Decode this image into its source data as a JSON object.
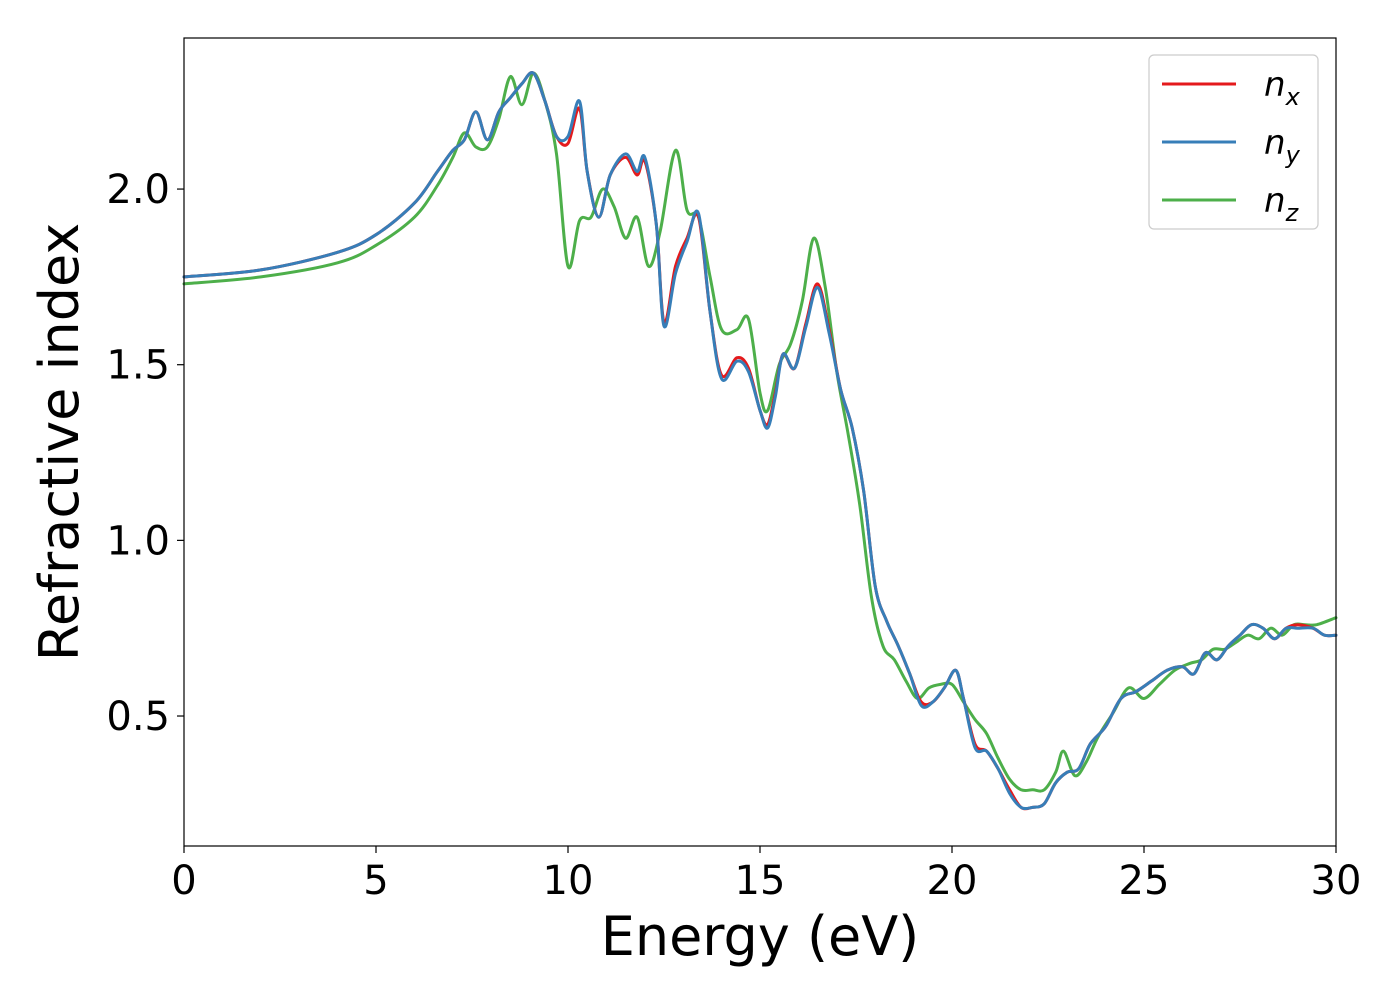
{
  "chart_data": {
    "type": "line",
    "title": "",
    "xlabel": "Energy (eV)",
    "ylabel": "Refractive index",
    "xlim": [
      0,
      30
    ],
    "ylim": [
      0.13,
      2.43
    ],
    "xticks": [
      0,
      5,
      10,
      15,
      20,
      25,
      30
    ],
    "xtick_labels": [
      "0",
      "5",
      "10",
      "15",
      "20",
      "25",
      "30"
    ],
    "yticks": [
      0.5,
      1.0,
      1.5,
      2.0
    ],
    "ytick_labels": [
      "0.5",
      "1.0",
      "1.5",
      "2.0"
    ],
    "grid": false,
    "legend": {
      "placement": "top-right",
      "entries": [
        {
          "base": "n",
          "sub": "x"
        },
        {
          "base": "n",
          "sub": "y"
        },
        {
          "base": "n",
          "sub": "z"
        }
      ]
    },
    "series": [
      {
        "name": "n_x",
        "color": "#e41a1c",
        "x": [
          0,
          2,
          4,
          5,
          6,
          6.6,
          7.0,
          7.3,
          7.6,
          7.9,
          8.2,
          8.5,
          8.8,
          9.1,
          9.4,
          9.7,
          10.0,
          10.3,
          10.5,
          10.8,
          11.1,
          11.5,
          11.8,
          12.0,
          12.3,
          12.5,
          12.8,
          13.1,
          13.4,
          13.7,
          14.0,
          14.4,
          14.7,
          15.0,
          15.2,
          15.4,
          15.6,
          15.9,
          16.2,
          16.5,
          16.8,
          17.1,
          17.4,
          17.7,
          18.0,
          18.3,
          18.6,
          18.9,
          19.2,
          19.5,
          19.8,
          20.1,
          20.3,
          20.6,
          20.9,
          21.2,
          21.5,
          21.8,
          22.1,
          22.4,
          22.7,
          23.0,
          23.3,
          23.6,
          24.0,
          24.4,
          24.8,
          25.2,
          25.6,
          26.0,
          26.3,
          26.6,
          26.9,
          27.2,
          27.5,
          27.8,
          28.1,
          28.4,
          28.7,
          29.0,
          29.4,
          29.7,
          30.0
        ],
        "y": [
          1.75,
          1.77,
          1.82,
          1.87,
          1.96,
          2.05,
          2.11,
          2.14,
          2.22,
          2.14,
          2.22,
          2.26,
          2.3,
          2.33,
          2.25,
          2.15,
          2.13,
          2.23,
          2.05,
          1.92,
          2.04,
          2.09,
          2.04,
          2.08,
          1.9,
          1.62,
          1.78,
          1.86,
          1.92,
          1.65,
          1.47,
          1.52,
          1.49,
          1.37,
          1.33,
          1.42,
          1.53,
          1.49,
          1.62,
          1.73,
          1.6,
          1.43,
          1.32,
          1.14,
          0.87,
          0.77,
          0.7,
          0.62,
          0.54,
          0.54,
          0.58,
          0.63,
          0.55,
          0.42,
          0.4,
          0.35,
          0.29,
          0.24,
          0.24,
          0.25,
          0.31,
          0.34,
          0.35,
          0.42,
          0.47,
          0.55,
          0.57,
          0.6,
          0.63,
          0.64,
          0.62,
          0.68,
          0.66,
          0.7,
          0.73,
          0.76,
          0.75,
          0.72,
          0.75,
          0.76,
          0.75,
          0.73,
          0.73
        ]
      },
      {
        "name": "n_y",
        "color": "#377eb8",
        "x": [
          0,
          2,
          4,
          5,
          6,
          6.6,
          7.0,
          7.3,
          7.6,
          7.9,
          8.2,
          8.5,
          8.8,
          9.1,
          9.4,
          9.7,
          10.0,
          10.3,
          10.5,
          10.8,
          11.1,
          11.5,
          11.8,
          12.0,
          12.3,
          12.5,
          12.8,
          13.1,
          13.4,
          13.7,
          14.0,
          14.4,
          14.7,
          15.0,
          15.2,
          15.4,
          15.6,
          15.9,
          16.2,
          16.5,
          16.8,
          17.1,
          17.4,
          17.7,
          18.0,
          18.3,
          18.6,
          18.9,
          19.2,
          19.5,
          19.8,
          20.1,
          20.3,
          20.6,
          20.9,
          21.2,
          21.5,
          21.8,
          22.1,
          22.4,
          22.7,
          23.0,
          23.3,
          23.6,
          24.0,
          24.4,
          24.8,
          25.2,
          25.6,
          26.0,
          26.3,
          26.6,
          26.9,
          27.2,
          27.5,
          27.8,
          28.1,
          28.4,
          28.7,
          29.0,
          29.4,
          29.7,
          30.0
        ],
        "y": [
          1.75,
          1.77,
          1.82,
          1.87,
          1.96,
          2.05,
          2.11,
          2.14,
          2.22,
          2.14,
          2.22,
          2.26,
          2.3,
          2.33,
          2.25,
          2.15,
          2.15,
          2.25,
          2.05,
          1.92,
          2.04,
          2.1,
          2.05,
          2.09,
          1.9,
          1.61,
          1.76,
          1.85,
          1.93,
          1.65,
          1.46,
          1.51,
          1.48,
          1.37,
          1.32,
          1.41,
          1.53,
          1.49,
          1.61,
          1.72,
          1.59,
          1.43,
          1.32,
          1.14,
          0.87,
          0.77,
          0.7,
          0.62,
          0.53,
          0.54,
          0.58,
          0.63,
          0.55,
          0.41,
          0.4,
          0.35,
          0.28,
          0.24,
          0.24,
          0.25,
          0.31,
          0.34,
          0.35,
          0.42,
          0.47,
          0.55,
          0.57,
          0.6,
          0.63,
          0.64,
          0.62,
          0.68,
          0.66,
          0.7,
          0.73,
          0.76,
          0.75,
          0.72,
          0.75,
          0.75,
          0.75,
          0.73,
          0.73
        ]
      },
      {
        "name": "n_z",
        "color": "#4daf4a",
        "x": [
          0,
          2,
          4,
          5,
          6,
          6.6,
          7.0,
          7.3,
          7.6,
          7.9,
          8.2,
          8.5,
          8.8,
          9.1,
          9.4,
          9.7,
          10.0,
          10.3,
          10.6,
          10.9,
          11.2,
          11.5,
          11.8,
          12.1,
          12.4,
          12.8,
          13.1,
          13.4,
          13.7,
          14.0,
          14.4,
          14.7,
          15.0,
          15.2,
          15.5,
          15.8,
          16.1,
          16.4,
          16.7,
          17.0,
          17.3,
          17.6,
          17.9,
          18.2,
          18.5,
          18.8,
          19.1,
          19.4,
          19.7,
          20.0,
          20.3,
          20.6,
          20.9,
          21.2,
          21.5,
          21.8,
          22.1,
          22.4,
          22.7,
          22.9,
          23.2,
          23.5,
          23.8,
          24.2,
          24.6,
          25.0,
          25.4,
          25.8,
          26.2,
          26.5,
          26.8,
          27.1,
          27.4,
          27.7,
          28.0,
          28.3,
          28.6,
          28.9,
          29.2,
          29.5,
          30.0
        ],
        "y": [
          1.73,
          1.75,
          1.79,
          1.84,
          1.92,
          2.01,
          2.09,
          2.16,
          2.12,
          2.12,
          2.2,
          2.32,
          2.24,
          2.33,
          2.25,
          2.1,
          1.78,
          1.91,
          1.92,
          2.0,
          1.95,
          1.86,
          1.92,
          1.78,
          1.88,
          2.11,
          1.94,
          1.92,
          1.75,
          1.6,
          1.6,
          1.63,
          1.42,
          1.37,
          1.5,
          1.56,
          1.68,
          1.86,
          1.72,
          1.48,
          1.3,
          1.1,
          0.84,
          0.7,
          0.66,
          0.6,
          0.55,
          0.58,
          0.59,
          0.59,
          0.54,
          0.49,
          0.45,
          0.38,
          0.32,
          0.29,
          0.29,
          0.29,
          0.34,
          0.4,
          0.33,
          0.37,
          0.44,
          0.51,
          0.58,
          0.55,
          0.59,
          0.63,
          0.65,
          0.66,
          0.69,
          0.69,
          0.71,
          0.73,
          0.72,
          0.75,
          0.73,
          0.76,
          0.76,
          0.76,
          0.78
        ]
      }
    ]
  }
}
